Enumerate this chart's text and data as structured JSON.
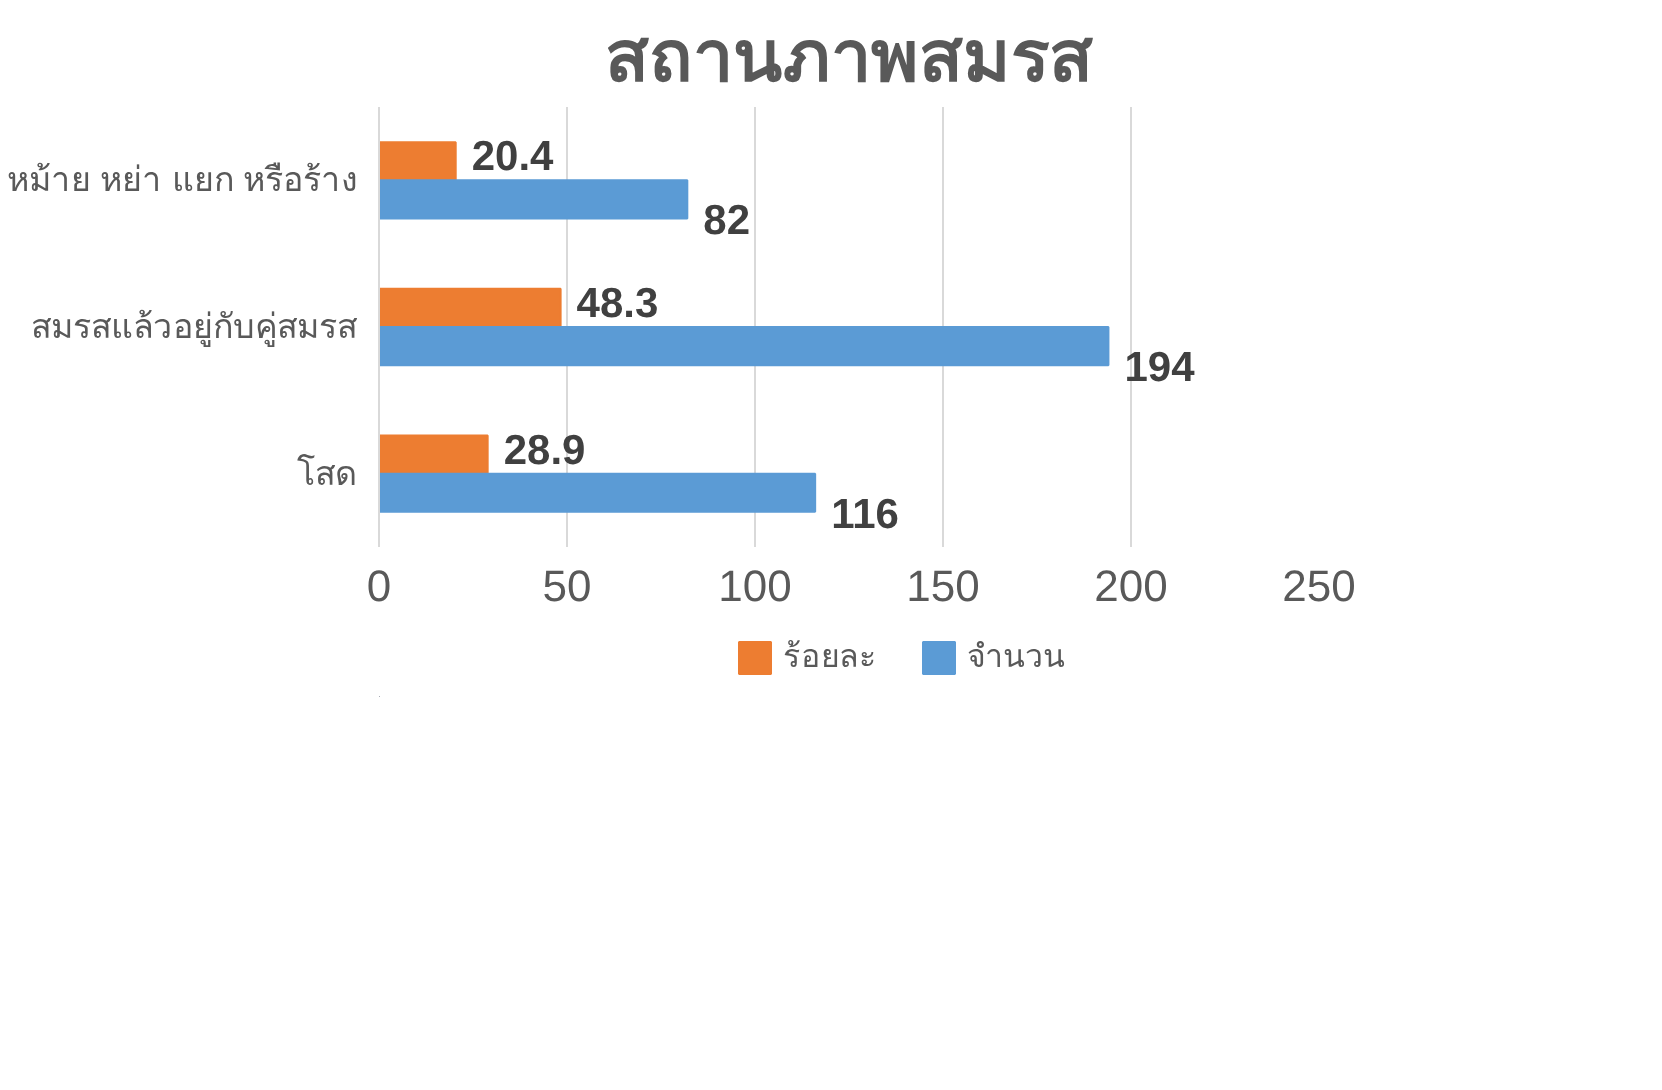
{
  "chart_data": {
    "type": "bar",
    "orientation": "horizontal",
    "title": "สถานภาพสมรส",
    "categories": [
      "หม้าย หย่า แยก หรือร้าง",
      "สมรสแล้วอยู่กับคู่สมรส",
      "โสด"
    ],
    "series": [
      {
        "name": "ร้อยละ",
        "color": "#ed7d31",
        "values": [
          20.4,
          48.3,
          28.9
        ]
      },
      {
        "name": "จำนวน",
        "color": "#5b9bd5",
        "values": [
          82,
          194,
          116
        ]
      }
    ],
    "xlim": [
      0,
      250
    ],
    "xticks": [
      0,
      50,
      100,
      150,
      200,
      250
    ],
    "grid": "x",
    "legend": "bottom",
    "data_labels": true
  }
}
